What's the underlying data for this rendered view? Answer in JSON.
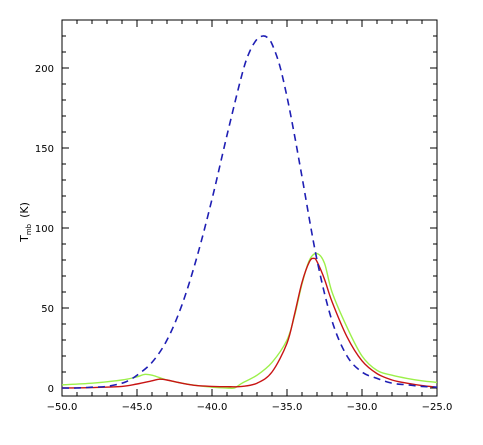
{
  "chart_data": {
    "type": "line",
    "title": "",
    "xlabel": "",
    "ylabel": "T",
    "ylabel_sub": "mb",
    "ylabel_unit": "(K)",
    "xlim": [
      -50,
      -25
    ],
    "ylim": [
      -5,
      230
    ],
    "xticks": [
      -50,
      -45,
      -40,
      -35,
      -30,
      -25
    ],
    "xtick_labels": [
      "−50.0",
      "−45.0",
      "−40.0",
      "−35.0",
      "−30.0",
      "−25.0"
    ],
    "yticks": [
      0,
      50,
      100,
      150,
      200
    ],
    "ytick_labels": [
      "0",
      "50",
      "100",
      "150",
      "200"
    ],
    "grid": false,
    "series": [
      {
        "color": "#1f1fb4",
        "style": "dashed",
        "x": [
          -50,
          -49,
          -48,
          -47,
          -46,
          -45.5,
          -45,
          -44,
          -43,
          -42,
          -41,
          -40,
          -39,
          -38,
          -37.5,
          -37,
          -36.6,
          -36.3,
          -36,
          -35.5,
          -35,
          -34.5,
          -34,
          -33,
          -32,
          -31,
          -30,
          -29,
          -28,
          -27,
          -26,
          -25
        ],
        "y": [
          0,
          0,
          0.5,
          1,
          3,
          5,
          8,
          16,
          30,
          52,
          82,
          118,
          158,
          196,
          210,
          218,
          220,
          219,
          215,
          202,
          182,
          158,
          132,
          80,
          42,
          20,
          10,
          6,
          3,
          2,
          1,
          0.5
        ]
      },
      {
        "color": "#c81414",
        "style": "solid",
        "x": [
          -50,
          -48,
          -46,
          -45,
          -44,
          -43.5,
          -43,
          -42,
          -41,
          -40,
          -39,
          -38,
          -37,
          -36,
          -35,
          -34.5,
          -34,
          -33.5,
          -33.2,
          -33,
          -32.5,
          -32,
          -31,
          -30,
          -29,
          -28,
          -27,
          -26,
          -25
        ],
        "y": [
          0,
          0.3,
          1,
          2.5,
          4.5,
          5.5,
          5,
          3,
          1.5,
          1,
          0.8,
          1,
          3,
          10,
          28,
          46,
          66,
          79,
          81,
          79,
          68,
          54,
          32,
          17,
          9,
          5,
          3,
          1.5,
          0.5
        ]
      },
      {
        "color": "#9cf04a",
        "style": "solid",
        "x": [
          -50,
          -48,
          -46,
          -45,
          -44.5,
          -44,
          -43.5,
          -43,
          -42,
          -41,
          -40,
          -39,
          -38.5,
          -38,
          -37,
          -36,
          -35,
          -34.5,
          -34,
          -33.5,
          -33,
          -32.5,
          -32,
          -31,
          -30,
          -29,
          -28,
          -27,
          -26,
          -25
        ],
        "y": [
          2,
          3,
          5,
          7,
          8.5,
          8,
          6.5,
          5,
          3,
          1.5,
          0.5,
          0,
          0,
          3,
          8,
          16,
          30,
          45,
          65,
          80,
          84,
          78,
          60,
          38,
          20,
          11,
          8,
          6,
          4.5,
          3.5
        ]
      }
    ]
  }
}
